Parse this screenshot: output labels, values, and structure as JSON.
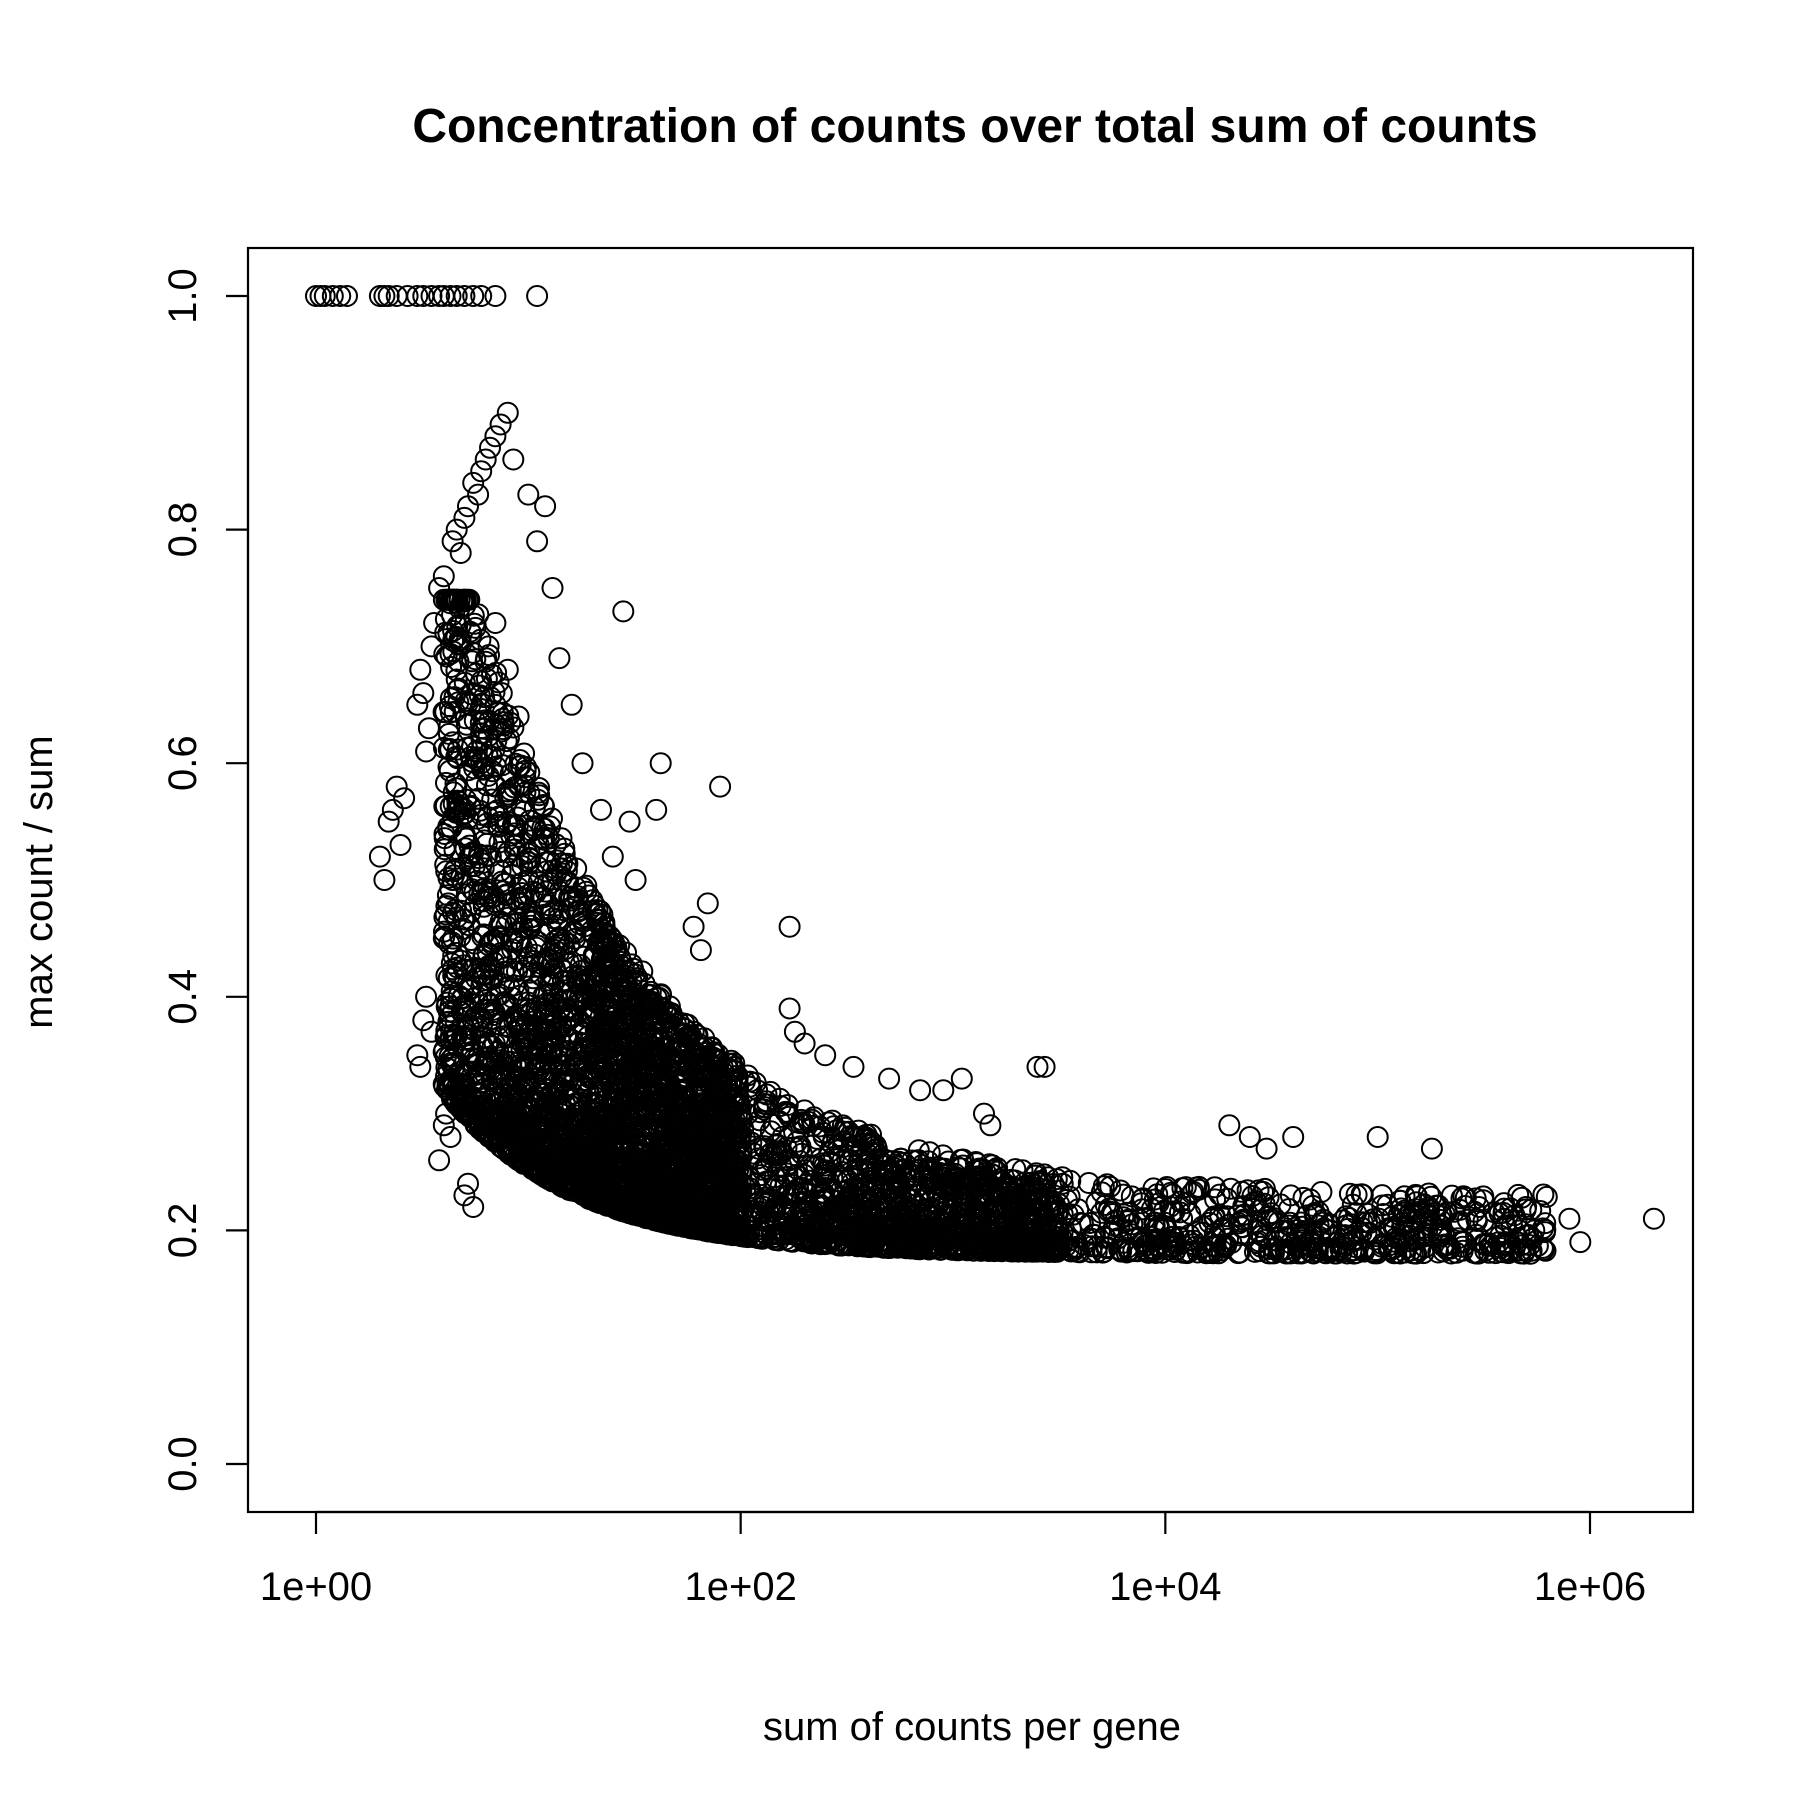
{
  "chart_data": {
    "type": "scatter",
    "title": "Concentration of counts over total sum of counts",
    "xlabel": "sum of counts per gene",
    "ylabel": "max count / sum",
    "x_scale": "log10",
    "xlim": [
      0.5,
      3000000
    ],
    "ylim": [
      0,
      1.04
    ],
    "x_ticks": [
      {
        "value": 1,
        "label": "1e+00"
      },
      {
        "value": 100,
        "label": "1e+02"
      },
      {
        "value": 10000,
        "label": "1e+04"
      },
      {
        "value": 1000000,
        "label": "1e+06"
      }
    ],
    "y_ticks": [
      {
        "value": 0.0,
        "label": "0.0"
      },
      {
        "value": 0.2,
        "label": "0.2"
      },
      {
        "value": 0.4,
        "label": "0.4"
      },
      {
        "value": 0.6,
        "label": "0.6"
      },
      {
        "value": 0.8,
        "label": "0.8"
      },
      {
        "value": 1.0,
        "label": "1.0"
      }
    ],
    "grid": false,
    "marker": "open-circle",
    "points": [
      [
        1,
        1.0
      ],
      [
        1.05,
        1.0
      ],
      [
        1.1,
        1.0
      ],
      [
        1.2,
        1.0
      ],
      [
        1.3,
        1.0
      ],
      [
        1.4,
        1.0
      ],
      [
        2,
        1.0
      ],
      [
        2.1,
        1.0
      ],
      [
        2.2,
        1.0
      ],
      [
        2.4,
        1.0
      ],
      [
        2.7,
        1.0
      ],
      [
        3,
        1.0
      ],
      [
        3.2,
        1.0
      ],
      [
        3.5,
        1.0
      ],
      [
        3.8,
        1.0
      ],
      [
        4,
        1.0
      ],
      [
        4.3,
        1.0
      ],
      [
        4.6,
        1.0
      ],
      [
        5,
        1.0
      ],
      [
        5.5,
        1.0
      ],
      [
        6,
        1.0
      ],
      [
        7,
        1.0
      ],
      [
        11,
        1.0
      ],
      [
        2,
        0.52
      ],
      [
        2.1,
        0.5
      ],
      [
        2.2,
        0.55
      ],
      [
        2.3,
        0.56
      ],
      [
        2.4,
        0.58
      ],
      [
        2.5,
        0.53
      ],
      [
        2.6,
        0.57
      ],
      [
        3,
        0.65
      ],
      [
        3.1,
        0.68
      ],
      [
        3.2,
        0.66
      ],
      [
        3.3,
        0.61
      ],
      [
        3.4,
        0.63
      ],
      [
        3.5,
        0.7
      ],
      [
        3.6,
        0.72
      ],
      [
        3.8,
        0.75
      ],
      [
        4,
        0.76
      ],
      [
        4.2,
        0.74
      ],
      [
        4.4,
        0.79
      ],
      [
        4.6,
        0.8
      ],
      [
        4.8,
        0.78
      ],
      [
        5,
        0.81
      ],
      [
        5.2,
        0.82
      ],
      [
        5.5,
        0.84
      ],
      [
        5.8,
        0.83
      ],
      [
        6,
        0.85
      ],
      [
        6.3,
        0.86
      ],
      [
        6.6,
        0.87
      ],
      [
        7,
        0.88
      ],
      [
        7.4,
        0.89
      ],
      [
        8,
        0.9
      ],
      [
        8.5,
        0.86
      ],
      [
        3,
        0.35
      ],
      [
        3.1,
        0.34
      ],
      [
        3.2,
        0.38
      ],
      [
        3.3,
        0.4
      ],
      [
        3.5,
        0.37
      ],
      [
        3.8,
        0.26
      ],
      [
        4,
        0.29
      ],
      [
        4.1,
        0.3
      ],
      [
        4.3,
        0.28
      ],
      [
        4.5,
        0.31
      ],
      [
        5,
        0.23
      ],
      [
        5.2,
        0.24
      ],
      [
        5.5,
        0.22
      ],
      [
        4,
        0.45
      ],
      [
        4.2,
        0.48
      ],
      [
        4.4,
        0.5
      ],
      [
        4.6,
        0.42
      ],
      [
        10,
        0.83
      ],
      [
        12,
        0.82
      ],
      [
        11,
        0.79
      ],
      [
        13,
        0.75
      ],
      [
        14,
        0.69
      ],
      [
        16,
        0.65
      ],
      [
        18,
        0.6
      ],
      [
        22,
        0.56
      ],
      [
        25,
        0.52
      ],
      [
        30,
        0.55
      ],
      [
        32,
        0.5
      ],
      [
        40,
        0.56
      ],
      [
        42,
        0.6
      ],
      [
        70,
        0.48
      ],
      [
        80,
        0.58
      ],
      [
        60,
        0.46
      ],
      [
        65,
        0.44
      ],
      [
        170,
        0.46
      ],
      [
        170,
        0.39
      ],
      [
        180,
        0.37
      ],
      [
        200,
        0.36
      ],
      [
        250,
        0.35
      ],
      [
        28,
        0.73
      ],
      [
        340,
        0.34
      ],
      [
        500,
        0.33
      ],
      [
        700,
        0.32
      ],
      [
        900,
        0.32
      ],
      [
        1100,
        0.33
      ],
      [
        1400,
        0.3
      ],
      [
        1500,
        0.29
      ],
      [
        2500,
        0.34
      ],
      [
        2700,
        0.34
      ],
      [
        20000,
        0.29
      ],
      [
        25000,
        0.28
      ],
      [
        30000,
        0.27
      ],
      [
        40000,
        0.28
      ],
      [
        100000,
        0.28
      ],
      [
        180000,
        0.27
      ],
      [
        300000,
        0.22
      ],
      [
        500000,
        0.22
      ],
      [
        800000,
        0.21
      ],
      [
        900000,
        0.19
      ],
      [
        2000000,
        0.21
      ],
      [
        6,
        0.67
      ],
      [
        6.5,
        0.7
      ],
      [
        7,
        0.72
      ],
      [
        7.5,
        0.66
      ],
      [
        8,
        0.68
      ],
      [
        9,
        0.64
      ],
      [
        6,
        0.6
      ],
      [
        7,
        0.58
      ],
      [
        8,
        0.55
      ],
      [
        9,
        0.52
      ],
      [
        10,
        0.5
      ],
      [
        12,
        0.47
      ],
      [
        14,
        0.45
      ],
      [
        16,
        0.43
      ],
      [
        18,
        0.41
      ],
      [
        20,
        0.39
      ],
      [
        24,
        0.37
      ],
      [
        28,
        0.35
      ],
      [
        34,
        0.33
      ],
      [
        40,
        0.32
      ],
      [
        50,
        0.31
      ],
      [
        60,
        0.3
      ],
      [
        80,
        0.29
      ],
      [
        100,
        0.28
      ],
      [
        130,
        0.27
      ],
      [
        170,
        0.26
      ],
      [
        220,
        0.255
      ],
      [
        300,
        0.25
      ],
      [
        400,
        0.245
      ],
      [
        550,
        0.24
      ],
      [
        750,
        0.235
      ],
      [
        1000,
        0.23
      ],
      [
        1500,
        0.225
      ],
      [
        2000,
        0.22
      ],
      [
        3000,
        0.22
      ],
      [
        5000,
        0.215
      ],
      [
        8000,
        0.21
      ],
      [
        12000,
        0.21
      ],
      [
        20000,
        0.205
      ],
      [
        35000,
        0.2
      ],
      [
        60000,
        0.2
      ],
      [
        100000,
        0.195
      ],
      [
        160000,
        0.195
      ],
      [
        250000,
        0.19
      ],
      [
        400000,
        0.19
      ],
      [
        600000,
        0.185
      ]
    ]
  }
}
